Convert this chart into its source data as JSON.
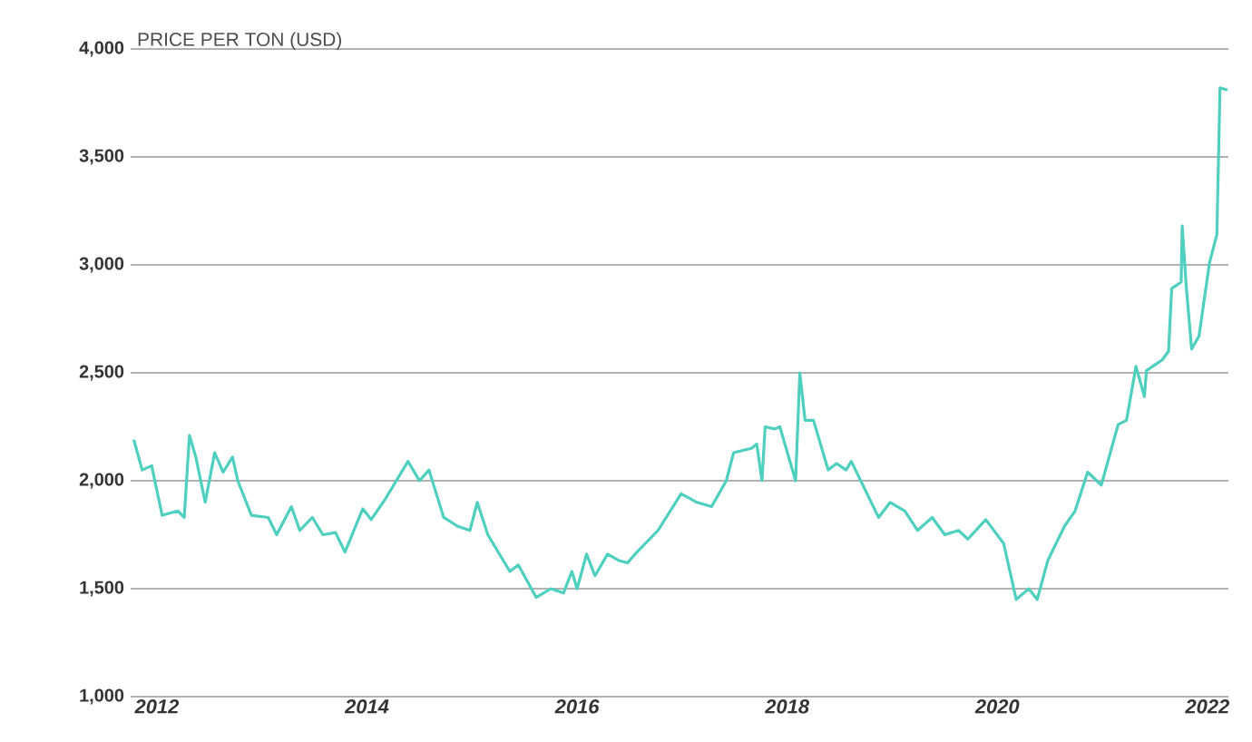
{
  "chart_data": {
    "type": "line",
    "ylabel": "PRICE PER TON (USD)",
    "x": [
      2011.78,
      2011.86,
      2011.95,
      2012.05,
      2012.2,
      2012.26,
      2012.31,
      2012.37,
      2012.46,
      2012.55,
      2012.63,
      2012.72,
      2012.77,
      2012.9,
      2013.06,
      2013.14,
      2013.28,
      2013.36,
      2013.48,
      2013.58,
      2013.7,
      2013.79,
      2013.96,
      2014.04,
      2014.18,
      2014.39,
      2014.5,
      2014.59,
      2014.73,
      2014.86,
      2014.98,
      2015.05,
      2015.15,
      2015.36,
      2015.44,
      2015.61,
      2015.75,
      2015.87,
      2015.95,
      2016.0,
      2016.09,
      2016.17,
      2016.29,
      2016.4,
      2016.48,
      2016.57,
      2016.77,
      2016.99,
      2017.14,
      2017.28,
      2017.42,
      2017.49,
      2017.66,
      2017.71,
      2017.76,
      2017.79,
      2017.88,
      2017.93,
      2018.08,
      2018.12,
      2018.17,
      2018.25,
      2018.39,
      2018.47,
      2018.56,
      2018.61,
      2018.73,
      2018.87,
      2018.98,
      2019.12,
      2019.24,
      2019.38,
      2019.5,
      2019.63,
      2019.72,
      2019.89,
      2020.06,
      2020.18,
      2020.3,
      2020.38,
      2020.48,
      2020.64,
      2020.74,
      2020.86,
      2020.99,
      2021.15,
      2021.23,
      2021.32,
      2021.4,
      2021.42,
      2021.57,
      2021.63,
      2021.66,
      2021.75,
      2021.76,
      2021.8,
      2021.85,
      2021.92,
      2022.02,
      2022.09,
      2022.12,
      2022.19
    ],
    "series": [
      {
        "color": "#4fcfbd",
        "values": [
          2190,
          2050,
          2070,
          1840,
          1860,
          1830,
          2210,
          2110,
          1900,
          2130,
          2040,
          2110,
          2000,
          1840,
          1830,
          1750,
          1880,
          1770,
          1830,
          1750,
          1760,
          1670,
          1870,
          1820,
          1920,
          2090,
          2000,
          2050,
          1830,
          1790,
          1770,
          1900,
          1750,
          1580,
          1610,
          1460,
          1500,
          1480,
          1580,
          1500,
          1660,
          1560,
          1660,
          1630,
          1620,
          1670,
          1770,
          1940,
          1900,
          1880,
          2000,
          2130,
          2150,
          2170,
          2000,
          2250,
          2240,
          2250,
          2000,
          2500,
          2280,
          2280,
          2050,
          2080,
          2050,
          2090,
          1970,
          1830,
          1900,
          1860,
          1770,
          1830,
          1750,
          1770,
          1730,
          1820,
          1710,
          1450,
          1500,
          1450,
          1630,
          1790,
          1860,
          2040,
          1980,
          2260,
          2280,
          2530,
          2390,
          2510,
          2560,
          2600,
          2890,
          2920,
          3180,
          2890,
          2610,
          2670,
          3010,
          3140,
          3820,
          3810
        ]
      }
    ],
    "xlim": [
      2011.75,
      2022.2
    ],
    "xticks": [
      2012,
      2014,
      2016,
      2018,
      2020,
      2022
    ],
    "ylim": [
      1000,
      4000
    ],
    "yticks": [
      {
        "value": 1000,
        "label": "1,000"
      },
      {
        "value": 1500,
        "label": "1,500"
      },
      {
        "value": 2000,
        "label": "2,000"
      },
      {
        "value": 2500,
        "label": "2,500"
      },
      {
        "value": 3000,
        "label": "3,000"
      },
      {
        "value": 3500,
        "label": "3,500"
      },
      {
        "value": 4000,
        "label": "4,000"
      }
    ],
    "grid": "y"
  }
}
